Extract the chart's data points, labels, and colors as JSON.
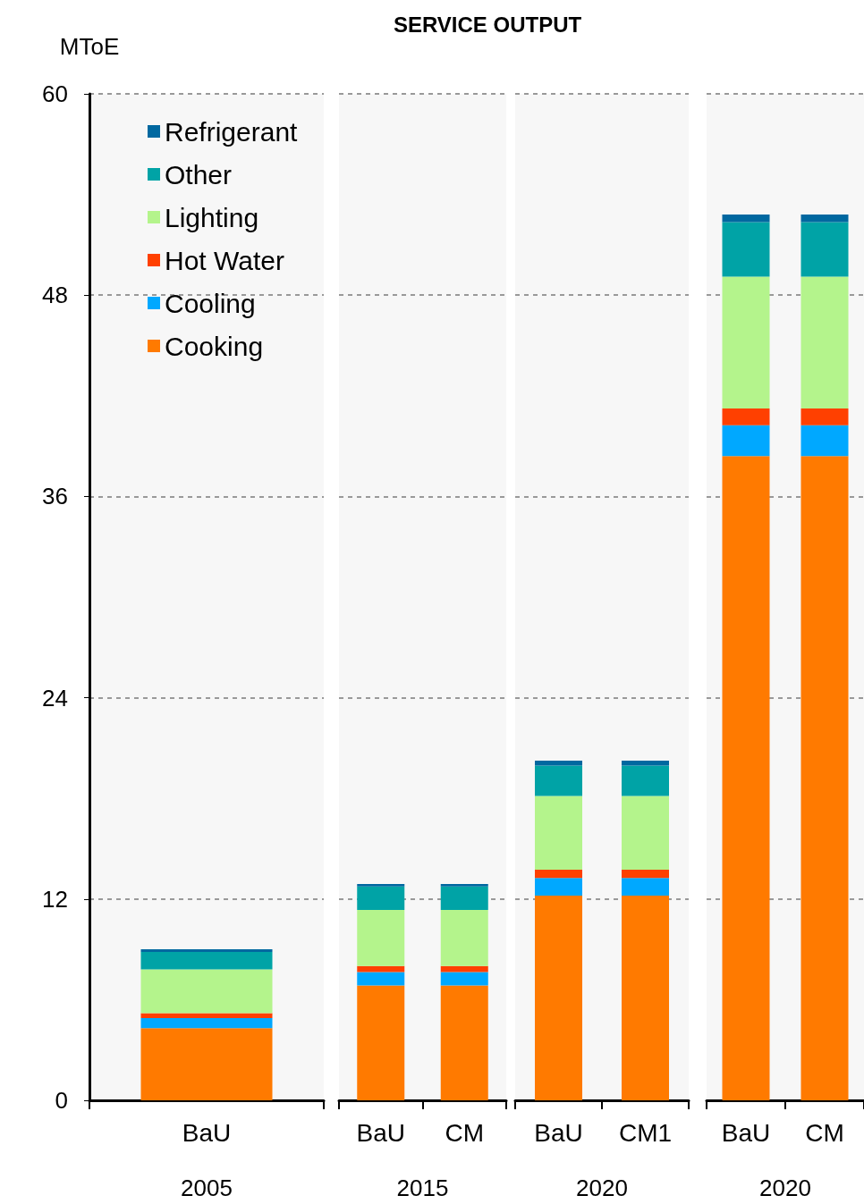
{
  "chart_data": [
    {
      "type": "bar",
      "ylabel": "MToE",
      "xlabel": "2005",
      "categories": [
        "BaU"
      ],
      "stacked": true,
      "ylim": [
        0,
        60
      ],
      "yticks": [
        0,
        12,
        24,
        36,
        48,
        60
      ],
      "grid": "y",
      "legend": "top",
      "series": [
        {
          "name": "Cooking",
          "color": "#ff7a00",
          "values": [
            4.3
          ]
        },
        {
          "name": "Cooling",
          "color": "#00a8ff",
          "values": [
            0.6
          ]
        },
        {
          "name": "Hot Water",
          "color": "#ff4000",
          "values": [
            0.3
          ]
        },
        {
          "name": "Lighting",
          "color": "#b4f48c",
          "values": [
            2.6
          ]
        },
        {
          "name": "Other",
          "color": "#00a3a6",
          "values": [
            1.05
          ]
        },
        {
          "name": "Refrigerant",
          "color": "#0068a0",
          "values": [
            0.15
          ]
        }
      ]
    },
    {
      "type": "bar",
      "title": "SERVICE OUTPUT",
      "xlabel": "2015",
      "categories": [
        "BaU",
        "CM"
      ],
      "stacked": true,
      "ylim": [
        0,
        60
      ],
      "yticks": [
        0,
        12,
        24,
        36,
        48,
        60
      ],
      "grid": "y",
      "tick_labels": "x",
      "series": [
        {
          "color": "#ff7a00",
          "values": [
            6.85,
            6.85
          ]
        },
        {
          "color": "#00a8ff",
          "values": [
            0.8,
            0.8
          ]
        },
        {
          "color": "#ff4000",
          "values": [
            0.35,
            0.35
          ]
        },
        {
          "color": "#b4f48c",
          "values": [
            3.35,
            3.35
          ]
        },
        {
          "color": "#00a3a6",
          "values": [
            1.4,
            1.4
          ]
        },
        {
          "color": "#0068a0",
          "values": [
            0.15,
            0.15
          ]
        }
      ]
    },
    {
      "type": "bar",
      "xlabel": "2020",
      "categories": [
        "BaU",
        "CM1"
      ],
      "stacked": true,
      "ylim": [
        0,
        60
      ],
      "yticks": [
        0,
        12,
        24,
        36,
        48,
        60
      ],
      "grid": "y",
      "tick_labels": "x",
      "series": [
        {
          "color": "#ff7a00",
          "values": [
            12.2,
            12.2
          ]
        },
        {
          "color": "#00a8ff",
          "values": [
            1.05,
            1.05
          ]
        },
        {
          "color": "#ff4000",
          "values": [
            0.5,
            0.5
          ]
        },
        {
          "color": "#b4f48c",
          "values": [
            4.4,
            4.4
          ]
        },
        {
          "color": "#00a3a6",
          "values": [
            1.8,
            1.8
          ]
        },
        {
          "color": "#0068a0",
          "values": [
            0.3,
            0.3
          ]
        }
      ]
    },
    {
      "type": "bar",
      "xlabel": "2020",
      "categories": [
        "BaU",
        "CM"
      ],
      "stacked": true,
      "ylim": [
        0,
        60
      ],
      "yticks": [
        0,
        12,
        24,
        36,
        48,
        60
      ],
      "grid": "y",
      "tick_labels": "x",
      "series": [
        {
          "color": "#ff7a00",
          "values": [
            38.4,
            38.4
          ]
        },
        {
          "color": "#00a8ff",
          "values": [
            1.85,
            1.85
          ]
        },
        {
          "color": "#ff4000",
          "values": [
            1.0,
            1.0
          ]
        },
        {
          "color": "#b4f48c",
          "values": [
            7.85,
            7.85
          ]
        },
        {
          "color": "#00a3a6",
          "values": [
            3.25,
            3.25
          ]
        },
        {
          "color": "#0068a0",
          "values": [
            0.45,
            0.45
          ]
        }
      ]
    }
  ]
}
